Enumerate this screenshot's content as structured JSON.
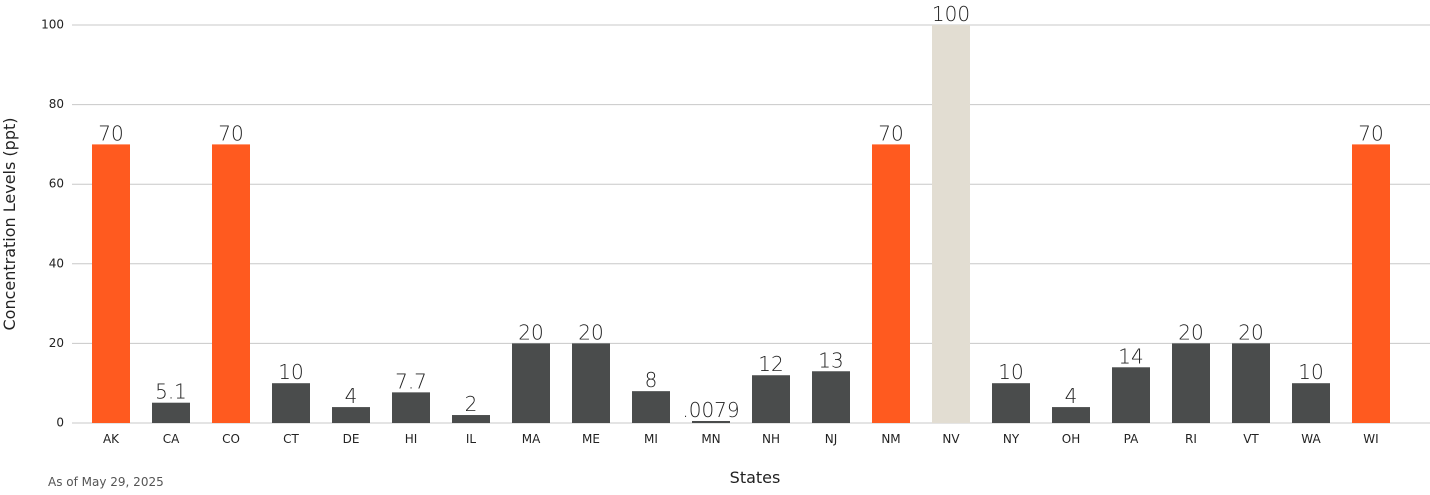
{
  "chart_data": {
    "type": "bar",
    "title": "",
    "xlabel": "States",
    "ylabel": "Concentration Levels (ppt)",
    "ylim": [
      0,
      100
    ],
    "yticks": [
      0,
      20,
      40,
      60,
      80,
      100
    ],
    "grid": true,
    "categories": [
      "AK",
      "CA",
      "CO",
      "CT",
      "DE",
      "HI",
      "IL",
      "MA",
      "ME",
      "MI",
      "MN",
      "NH",
      "NJ",
      "NM",
      "NV",
      "NY",
      "OH",
      "PA",
      "RI",
      "VT",
      "WA",
      "WI"
    ],
    "values": [
      70,
      5.1,
      70,
      10,
      4,
      7.7,
      2,
      20,
      20,
      8,
      0.0079,
      12,
      13,
      70,
      100,
      10,
      4,
      14,
      20,
      20,
      10,
      70
    ],
    "value_labels": [
      "70",
      "5.1",
      "70",
      "10",
      "4",
      "7.7",
      "2",
      "20",
      "20",
      "8",
      ".0079",
      "12",
      "13",
      "70",
      "100",
      "10",
      "4",
      "14",
      "20",
      "20",
      "10",
      "70"
    ],
    "bar_colors": [
      "#ff5a1f",
      "#4a4c4c",
      "#ff5a1f",
      "#4a4c4c",
      "#4a4c4c",
      "#4a4c4c",
      "#4a4c4c",
      "#4a4c4c",
      "#4a4c4c",
      "#4a4c4c",
      "#4a4c4c",
      "#4a4c4c",
      "#4a4c4c",
      "#ff5a1f",
      "#e2ddd2",
      "#4a4c4c",
      "#4a4c4c",
      "#4a4c4c",
      "#4a4c4c",
      "#4a4c4c",
      "#4a4c4c",
      "#ff5a1f"
    ],
    "note": "As of May 29, 2025"
  }
}
